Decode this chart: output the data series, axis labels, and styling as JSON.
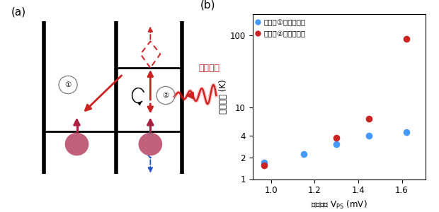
{
  "panel_b": {
    "blue_x": [
      0.97,
      1.15,
      1.3,
      1.45,
      1.62
    ],
    "blue_y": [
      1.7,
      2.25,
      3.1,
      4.05,
      4.5
    ],
    "red_x": [
      0.97,
      1.3,
      1.45,
      1.62
    ],
    "red_y": [
      1.55,
      3.75,
      7.0,
      90.0
    ],
    "xlabel": "直流電圧 V$_\\mathrm{PS}$ (mV)",
    "ylabel": "格子温度 (K)",
    "legend_blue": "：遷移①の格子温度",
    "legend_red": "：遷移②の格子温度",
    "xlim": [
      0.915,
      1.71
    ],
    "ylim": [
      1.0,
      200
    ],
    "xticks": [
      1.0,
      1.2,
      1.4,
      1.6
    ],
    "yticks": [
      1,
      2,
      4,
      10,
      100
    ],
    "label_b": "(b)"
  }
}
